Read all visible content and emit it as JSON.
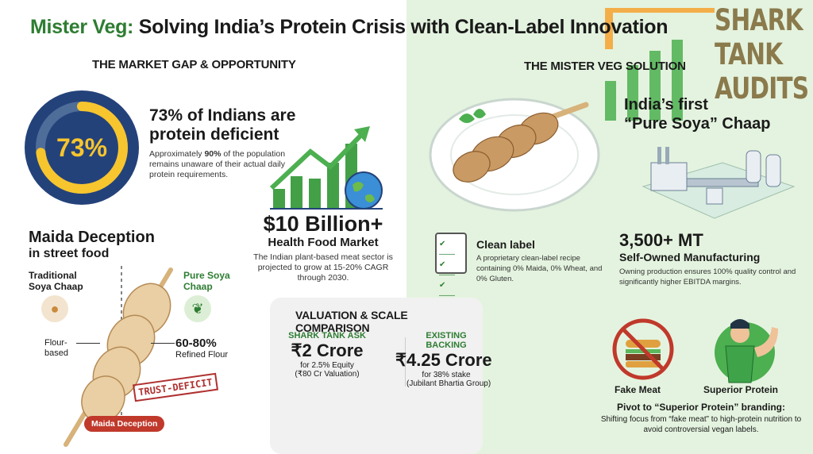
{
  "title": {
    "brand": "Mister Veg:",
    "rest": " Solving India’s Protein Crisis with Clean-Label Innovation"
  },
  "watermark": {
    "lines": [
      "SHARK",
      "TANK",
      "AUDITS"
    ]
  },
  "left": {
    "section_title": "THE MARKET GAP & OPPORTUNITY",
    "donut": {
      "label": "73%",
      "percent": 73
    },
    "deficiency": {
      "headline_1": "73% of Indians are",
      "headline_2": "protein deficient",
      "desc_pre": "Approximately ",
      "desc_bold": "90%",
      "desc_post": " of the population remains unaware of their actual daily protein requirements."
    },
    "market": {
      "value": "$10 Billion+",
      "label": "Health Food Market",
      "desc": "The Indian plant-based meat sector is projected to grow at 15-20% CAGR through 2030."
    },
    "maida": {
      "title": "Maida Deception",
      "subtitle": "in street food",
      "traditional": "Traditional Soya Chaap",
      "pure": "Pure Soya Chaap",
      "flour": "Flour-based",
      "pct": "60-80%",
      "refined": "Refined Flour",
      "stamp": "TRUST-DEFICIT",
      "badge": "Maida Deception"
    }
  },
  "valuation": {
    "title": "VALUATION & SCALE COMPARISON",
    "ask": {
      "label": "SHARK TANK ASK",
      "amount": "₹2 Crore",
      "line1": "for 2.5% Equity",
      "line2": "(₹80 Cr Valuation)"
    },
    "backing": {
      "label": "EXISTING BACKING",
      "amount": "₹4.25 Crore",
      "line1": "for 38% stake",
      "line2": "(Jubilant Bhartia Group)"
    }
  },
  "right": {
    "section_title": "THE MISTER VEG SOLUTION",
    "first": {
      "line1": "India’s first",
      "line2": "“Pure Soya” Chaap"
    },
    "clean": {
      "title": "Clean label",
      "desc": "A proprietary clean-label recipe containing 0% Maida, 0% Wheat, and 0% Gluten."
    },
    "mfg": {
      "value": "3,500+ MT",
      "label": "Self-Owned Manufacturing",
      "desc": "Owning production ensures 100% quality control and significantly higher EBITDA margins."
    },
    "fake": "Fake Meat",
    "superior": "Superior Protein",
    "pivot": {
      "title": "Pivot to “Superior Protein” branding:",
      "desc": "Shifting focus from “fake meat” to high-protein nutrition to avoid controversial vegan labels."
    }
  },
  "colors": {
    "brand": "#2e7d32",
    "navy": "#24427a",
    "yellow": "#f7c52d",
    "red": "#c0392b"
  }
}
